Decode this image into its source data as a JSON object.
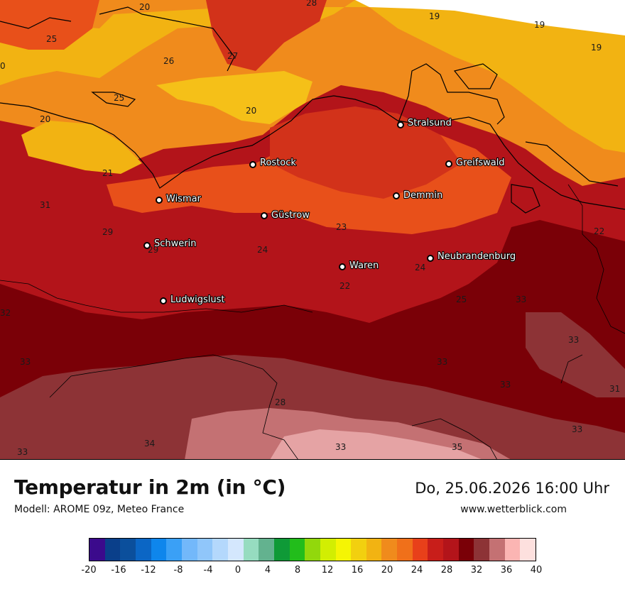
{
  "title": "Temperatur in 2m (in °C)",
  "model": "Modell: AROME 09z, Meteo France",
  "datetime": "Do, 25.06.2026 16:00 Uhr",
  "website": "www.wetterblick.com",
  "colors": {
    "sea_warm": "#f2b312",
    "sea_mid": "#f5c018",
    "orange": "#f08b1c",
    "orange_red": "#e8501a",
    "red": "#d2321a",
    "dark_red": "#b3141a",
    "maroon": "#7a0007",
    "brown_red": "#8d3336",
    "mauve": "#c47173",
    "pink": "#e5a3a4",
    "no_data": "#ffffff"
  },
  "cities": [
    {
      "name": "Stralsund"
    },
    {
      "name": "Rostock"
    },
    {
      "name": "Greifswald"
    },
    {
      "name": "Wismar"
    },
    {
      "name": "Demmin"
    },
    {
      "name": "Güstrow"
    },
    {
      "name": "Schwerin"
    },
    {
      "name": "Neubrandenburg"
    },
    {
      "name": "Waren"
    },
    {
      "name": "Ludwigslust"
    }
  ],
  "temperature_labels": [
    "20",
    "28",
    "19",
    "19",
    "19",
    "25",
    "27",
    "26",
    "0",
    "25",
    "20",
    "20",
    "21",
    "31",
    "29",
    "29",
    "23",
    "24",
    "24",
    "22",
    "22",
    "25",
    "33",
    "32",
    "33",
    "33",
    "33",
    "33",
    "31",
    "28",
    "33",
    "34",
    "33",
    "35",
    "33"
  ],
  "color_scale": {
    "tick_labels": [
      "-20",
      "-16",
      "-12",
      "-8",
      "-4",
      "0",
      "4",
      "8",
      "12",
      "16",
      "20",
      "24",
      "28",
      "32",
      "36",
      "40"
    ],
    "colors": [
      "#3b0a8c",
      "#0a3f8a",
      "#0b4f9c",
      "#0b66c5",
      "#0e86ec",
      "#3aa0f6",
      "#73b8fa",
      "#90c6fa",
      "#b4d8fc",
      "#d4e7fd",
      "#96dcc0",
      "#63b28f",
      "#0f9a37",
      "#22bd1b",
      "#92d80c",
      "#d2ee02",
      "#f5f504",
      "#f2d00f",
      "#f2b312",
      "#f08b1c",
      "#f0701a",
      "#e8401a",
      "#c81e1a",
      "#b3141a",
      "#7a0007",
      "#8d3336",
      "#c47173",
      "#fbb5b3",
      "#fde0de"
    ]
  }
}
